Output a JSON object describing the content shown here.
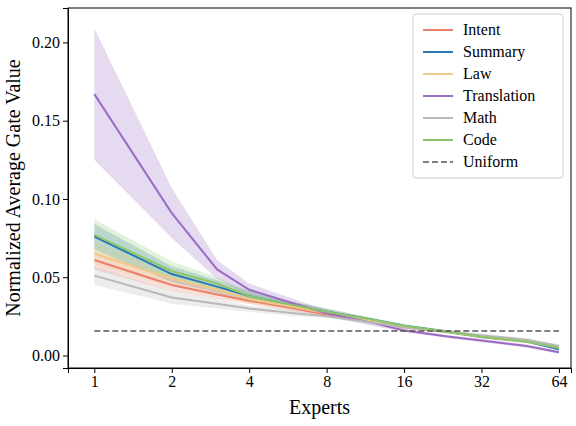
{
  "chart_data": {
    "type": "line",
    "x_label": "Experts",
    "y_label": "Normalized Average Gate Value",
    "log": "x",
    "grid": false,
    "legend": "upper right",
    "x": [
      1,
      2,
      3,
      4,
      6,
      8,
      12,
      16,
      24,
      32,
      48,
      64
    ],
    "xlim": [
      0.79,
      71.3
    ],
    "xticks": [
      1,
      2,
      4,
      8,
      16,
      32,
      64
    ],
    "ylim": [
      -0.008,
      0.222
    ],
    "yticks": [
      {
        "value": 0,
        "label": "0.00"
      },
      {
        "value": 0.05,
        "label": "0.05"
      },
      {
        "value": 0.1,
        "label": "0.10"
      },
      {
        "value": 0.15,
        "label": "0.15"
      },
      {
        "value": 0.2,
        "label": "0.20"
      }
    ],
    "series": [
      {
        "name": "Intent",
        "color": "#e8806a",
        "line_style": "solid",
        "values": [
          0.061,
          0.045,
          0.039,
          0.035,
          0.03,
          0.026,
          0.022,
          0.018,
          0.015,
          0.012,
          0.009,
          0.005
        ],
        "error": [
          0.006,
          0.004,
          0.003,
          0.002,
          0.002,
          0.001,
          0.001,
          0.001,
          0.001,
          0.001,
          0.001,
          0.001
        ]
      },
      {
        "name": "Summary",
        "color": "#2a78b6",
        "line_style": "solid",
        "values": [
          0.076,
          0.052,
          0.044,
          0.038,
          0.032,
          0.028,
          0.023,
          0.019,
          0.015,
          0.012,
          0.009,
          0.004
        ],
        "error": [
          0.008,
          0.005,
          0.004,
          0.003,
          0.002,
          0.002,
          0.001,
          0.001,
          0.001,
          0.001,
          0.001,
          0.001
        ]
      },
      {
        "name": "Law",
        "color": "#f0c986",
        "line_style": "solid",
        "values": [
          0.065,
          0.049,
          0.042,
          0.036,
          0.031,
          0.027,
          0.022,
          0.018,
          0.015,
          0.012,
          0.009,
          0.005
        ],
        "error": [
          0.007,
          0.005,
          0.003,
          0.003,
          0.002,
          0.002,
          0.001,
          0.001,
          0.001,
          0.001,
          0.001,
          0.001
        ]
      },
      {
        "name": "Translation",
        "color": "#9a6cc4",
        "line_style": "solid",
        "values": [
          0.167,
          0.091,
          0.055,
          0.042,
          0.033,
          0.027,
          0.021,
          0.016,
          0.012,
          0.0095,
          0.006,
          0.002
        ],
        "error": [
          0.042,
          0.016,
          0.006,
          0.004,
          0.003,
          0.002,
          0.002,
          0.001,
          0.001,
          0.001,
          0.001,
          0.001
        ]
      },
      {
        "name": "Math",
        "color": "#b8b8b8",
        "line_style": "solid",
        "values": [
          0.051,
          0.037,
          0.033,
          0.03,
          0.027,
          0.025,
          0.021,
          0.018,
          0.015,
          0.013,
          0.01,
          0.006
        ],
        "error": [
          0.006,
          0.004,
          0.003,
          0.002,
          0.002,
          0.001,
          0.001,
          0.001,
          0.001,
          0.001,
          0.001,
          0.001
        ]
      },
      {
        "name": "Code",
        "color": "#8dc66a",
        "line_style": "solid",
        "values": [
          0.077,
          0.054,
          0.046,
          0.038,
          0.032,
          0.028,
          0.023,
          0.019,
          0.015,
          0.012,
          0.009,
          0.005
        ],
        "error": [
          0.01,
          0.006,
          0.004,
          0.003,
          0.002,
          0.002,
          0.001,
          0.001,
          0.001,
          0.001,
          0.001,
          0.001
        ]
      },
      {
        "name": "Uniform",
        "color": "#555555",
        "line_style": "dashed",
        "values": [
          0.0156,
          0.0156,
          0.0156,
          0.0156,
          0.0156,
          0.0156,
          0.0156,
          0.0156,
          0.0156,
          0.0156,
          0.0156,
          0.0156
        ]
      }
    ]
  }
}
